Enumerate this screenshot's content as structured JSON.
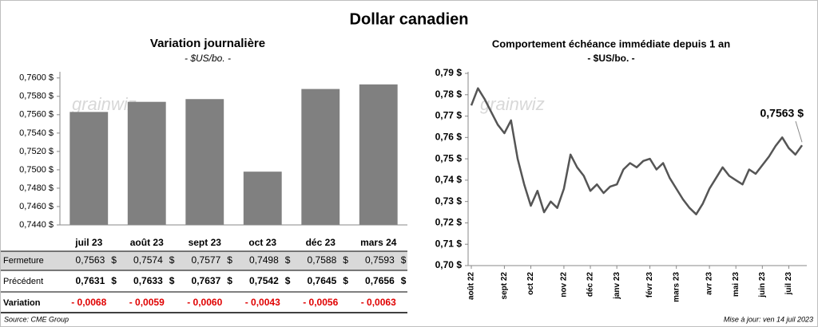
{
  "title": "Dollar canadien",
  "chart_data": [
    {
      "type": "bar",
      "title": "Variation  journalière",
      "subtitle": "- $US/bo. -",
      "categories": [
        "juil 23",
        "août 23",
        "sept 23",
        "oct 23",
        "déc 23",
        "mars 24"
      ],
      "values": [
        0.7563,
        0.7574,
        0.7577,
        0.7498,
        0.7588,
        0.7593
      ],
      "value_labels": [
        "0,7563",
        "0,7574",
        "0,7577",
        "0,7498",
        "0,7588",
        "0,7593"
      ],
      "color": "#808080",
      "ylim": [
        0.744,
        0.7605
      ],
      "yticks": [
        {
          "value": 0.744,
          "label": "0,7440 $"
        },
        {
          "value": 0.746,
          "label": "0,7460 $"
        },
        {
          "value": 0.748,
          "label": "0,7480 $"
        },
        {
          "value": 0.75,
          "label": "0,7500 $"
        },
        {
          "value": 0.752,
          "label": "0,7520 $"
        },
        {
          "value": 0.754,
          "label": "0,7540 $"
        },
        {
          "value": 0.756,
          "label": "0,7560 $"
        },
        {
          "value": 0.758,
          "label": "0,7580 $"
        },
        {
          "value": 0.76,
          "label": "0,7600 $"
        }
      ],
      "watermark": "grainwiz",
      "table": {
        "unit": "$",
        "rows": [
          {
            "label": "Fermeture"
          },
          {
            "label": "Précédent",
            "cells": [
              "0,7631",
              "0,7633",
              "0,7637",
              "0,7542",
              "0,7645",
              "0,7656"
            ]
          },
          {
            "label": "Variation",
            "cells": [
              "- 0,0068",
              "- 0,0059",
              "- 0,0060",
              "- 0,0043",
              "- 0,0056",
              "- 0,0063"
            ]
          }
        ]
      }
    },
    {
      "type": "line",
      "title": "Comportement échéance immédiate depuis 1 an",
      "subtitle": "- $US/bo. -",
      "categories": [
        "août 22",
        null,
        null,
        null,
        null,
        "sept 22",
        null,
        null,
        null,
        "oct 22",
        null,
        null,
        null,
        null,
        "nov 22",
        null,
        null,
        null,
        "déc 22",
        null,
        null,
        null,
        "janv 23",
        null,
        null,
        null,
        null,
        "févr 23",
        null,
        null,
        null,
        "mars 23",
        null,
        null,
        null,
        null,
        "avr 23",
        null,
        null,
        null,
        "mai 23",
        null,
        null,
        null,
        "juin 23",
        null,
        null,
        null,
        "juil 23",
        null,
        null
      ],
      "values": [
        0.775,
        0.783,
        0.778,
        0.772,
        0.766,
        0.762,
        0.768,
        0.75,
        0.738,
        0.728,
        0.735,
        0.725,
        0.73,
        0.727,
        0.736,
        0.752,
        0.746,
        0.742,
        0.735,
        0.738,
        0.734,
        0.737,
        0.738,
        0.745,
        0.748,
        0.746,
        0.749,
        0.75,
        0.745,
        0.748,
        0.741,
        0.736,
        0.731,
        0.727,
        0.724,
        0.729,
        0.736,
        0.741,
        0.746,
        0.742,
        0.74,
        0.738,
        0.745,
        0.743,
        0.747,
        0.751,
        0.756,
        0.76,
        0.755,
        0.752,
        0.7563
      ],
      "color": "#555555",
      "ylim": [
        0.7,
        0.79
      ],
      "yticks": [
        {
          "value": 0.7,
          "label": "0,70 $"
        },
        {
          "value": 0.71,
          "label": "0,71 $"
        },
        {
          "value": 0.72,
          "label": "0,72 $"
        },
        {
          "value": 0.73,
          "label": "0,73 $"
        },
        {
          "value": 0.74,
          "label": "0,74 $"
        },
        {
          "value": 0.75,
          "label": "0,75 $"
        },
        {
          "value": 0.76,
          "label": "0,76 $"
        },
        {
          "value": 0.77,
          "label": "0,77 $"
        },
        {
          "value": 0.78,
          "label": "0,78 $"
        },
        {
          "value": 0.79,
          "label": "0,79 $"
        }
      ],
      "annotation": "0,7563 $",
      "watermark": "grainwiz"
    }
  ],
  "footer": {
    "source": "Source: CME Group",
    "updated": "Mise à jour: ven 14 juil 2023"
  }
}
